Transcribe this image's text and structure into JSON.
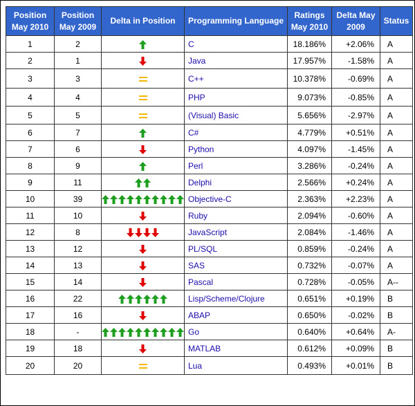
{
  "headers": {
    "pos_2010": "Position May 2010",
    "pos_2009": "Position May 2009",
    "delta_pos": "Delta in Position",
    "language": "Programming Language",
    "ratings": "Ratings May 2010",
    "delta_2009": "Delta May 2009",
    "status": "Status"
  },
  "colors": {
    "header_bg": "#3366cc",
    "up_arrow": "#1e9e1e",
    "down_arrow": "#e00000",
    "equal_sign": "#f5b800",
    "link": "#1a0dab"
  },
  "rows": [
    {
      "pos2010": "1",
      "pos2009": "2",
      "dir": "up",
      "count": 1,
      "lang": "C",
      "rating": "18.186%",
      "delta": "+2.06%",
      "status": "A"
    },
    {
      "pos2010": "2",
      "pos2009": "1",
      "dir": "down",
      "count": 1,
      "lang": "Java",
      "rating": "17.957%",
      "delta": "-1.58%",
      "status": "A"
    },
    {
      "pos2010": "3",
      "pos2009": "3",
      "dir": "eq",
      "count": 1,
      "lang": "C++",
      "rating": "10.378%",
      "delta": "-0.69%",
      "status": "A"
    },
    {
      "pos2010": "4",
      "pos2009": "4",
      "dir": "eq",
      "count": 1,
      "lang": "PHP",
      "rating": "9.073%",
      "delta": "-0.85%",
      "status": "A"
    },
    {
      "pos2010": "5",
      "pos2009": "5",
      "dir": "eq",
      "count": 1,
      "lang": "(Visual) Basic",
      "rating": "5.656%",
      "delta": "-2.97%",
      "status": "A"
    },
    {
      "pos2010": "6",
      "pos2009": "7",
      "dir": "up",
      "count": 1,
      "lang": "C#",
      "rating": "4.779%",
      "delta": "+0.51%",
      "status": "A"
    },
    {
      "pos2010": "7",
      "pos2009": "6",
      "dir": "down",
      "count": 1,
      "lang": "Python",
      "rating": "4.097%",
      "delta": "-1.45%",
      "status": "A"
    },
    {
      "pos2010": "8",
      "pos2009": "9",
      "dir": "up",
      "count": 1,
      "lang": "Perl",
      "rating": "3.286%",
      "delta": "-0.24%",
      "status": "A"
    },
    {
      "pos2010": "9",
      "pos2009": "11",
      "dir": "up",
      "count": 2,
      "lang": "Delphi",
      "rating": "2.566%",
      "delta": "+0.24%",
      "status": "A"
    },
    {
      "pos2010": "10",
      "pos2009": "39",
      "dir": "up",
      "count": 10,
      "lang": "Objective-C",
      "rating": "2.363%",
      "delta": "+2.23%",
      "status": "A"
    },
    {
      "pos2010": "11",
      "pos2009": "10",
      "dir": "down",
      "count": 1,
      "lang": "Ruby",
      "rating": "2.094%",
      "delta": "-0.60%",
      "status": "A"
    },
    {
      "pos2010": "12",
      "pos2009": "8",
      "dir": "down",
      "count": 4,
      "lang": "JavaScript",
      "rating": "2.084%",
      "delta": "-1.46%",
      "status": "A"
    },
    {
      "pos2010": "13",
      "pos2009": "12",
      "dir": "down",
      "count": 1,
      "lang": "PL/SQL",
      "rating": "0.859%",
      "delta": "-0.24%",
      "status": "A"
    },
    {
      "pos2010": "14",
      "pos2009": "13",
      "dir": "down",
      "count": 1,
      "lang": "SAS",
      "rating": "0.732%",
      "delta": "-0.07%",
      "status": "A"
    },
    {
      "pos2010": "15",
      "pos2009": "14",
      "dir": "down",
      "count": 1,
      "lang": "Pascal",
      "rating": "0.728%",
      "delta": "-0.05%",
      "status": "A--"
    },
    {
      "pos2010": "16",
      "pos2009": "22",
      "dir": "up",
      "count": 6,
      "lang": "Lisp/Scheme/Clojure",
      "rating": "0.651%",
      "delta": "+0.19%",
      "status": "B"
    },
    {
      "pos2010": "17",
      "pos2009": "16",
      "dir": "down",
      "count": 1,
      "lang": "ABAP",
      "rating": "0.650%",
      "delta": "-0.02%",
      "status": "B"
    },
    {
      "pos2010": "18",
      "pos2009": "-",
      "dir": "up",
      "count": 10,
      "lang": "Go",
      "rating": "0.640%",
      "delta": "+0.64%",
      "status": "A-"
    },
    {
      "pos2010": "19",
      "pos2009": "18",
      "dir": "down",
      "count": 1,
      "lang": "MATLAB",
      "rating": "0.612%",
      "delta": "+0.09%",
      "status": "B"
    },
    {
      "pos2010": "20",
      "pos2009": "20",
      "dir": "eq",
      "count": 1,
      "lang": "Lua",
      "rating": "0.493%",
      "delta": "+0.01%",
      "status": "B"
    }
  ]
}
